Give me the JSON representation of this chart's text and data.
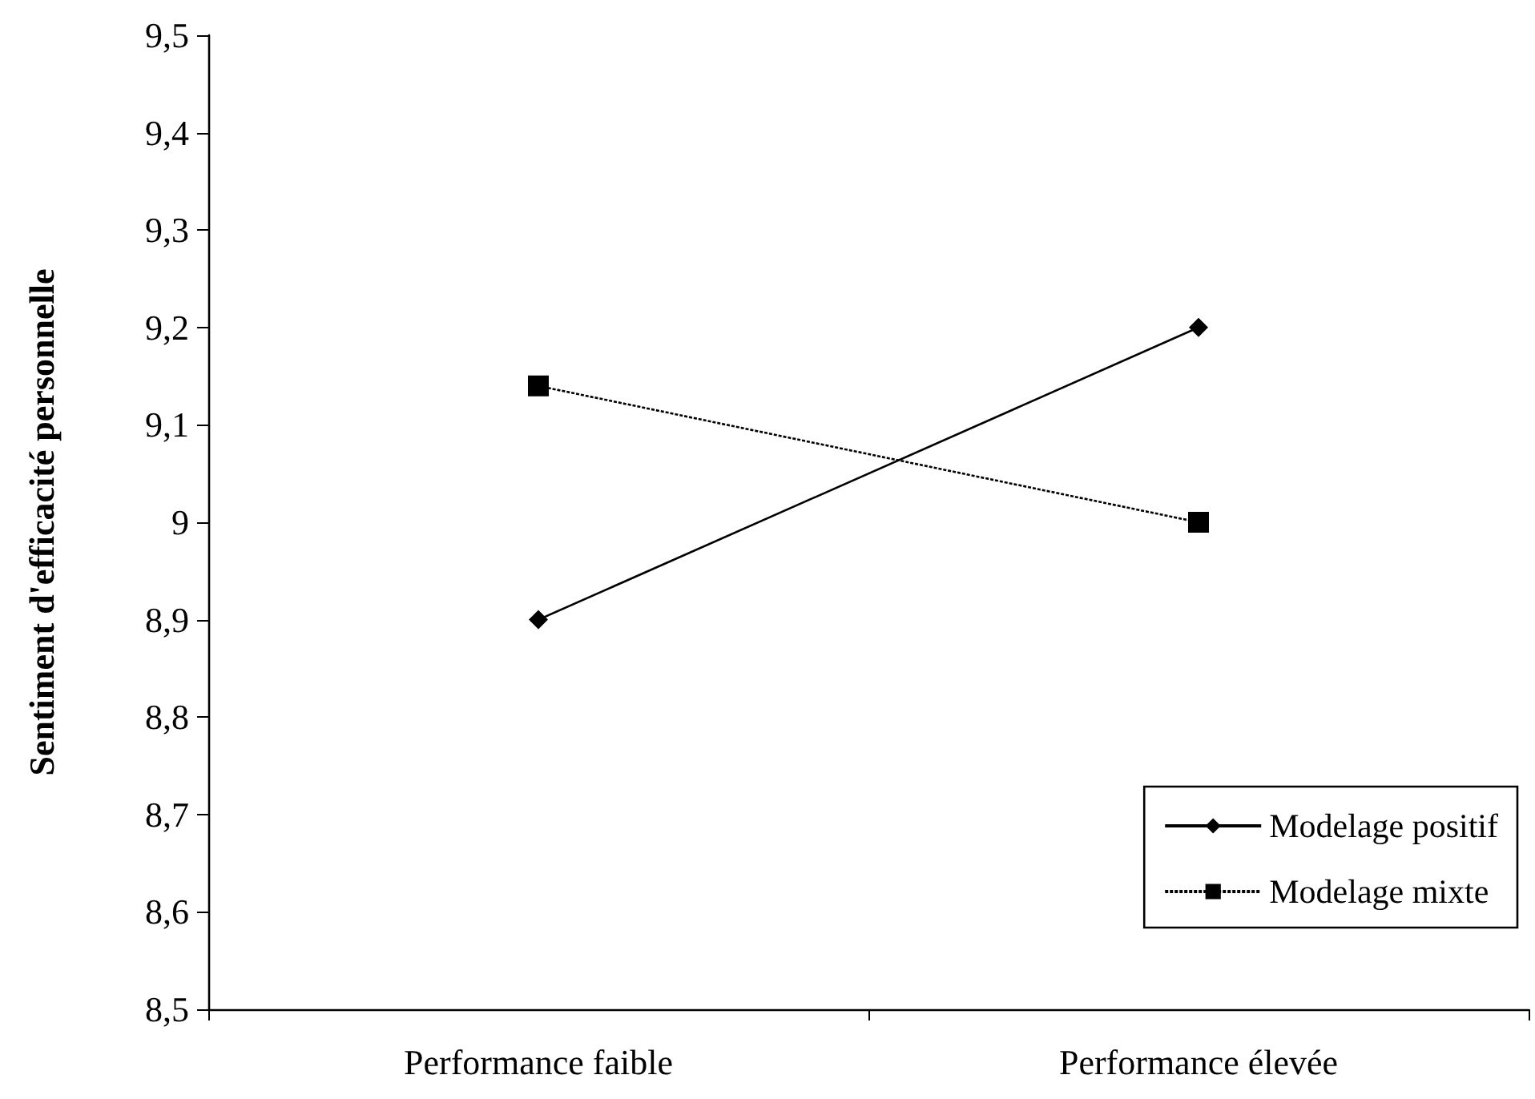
{
  "chart_data": {
    "type": "line",
    "ylabel": "Sentiment d'efficacité personnelle",
    "categories": [
      "Performance faible",
      "Performance élevée"
    ],
    "series": [
      {
        "name": "Modelage positif",
        "color": "#000000",
        "values": [
          8.9,
          9.2
        ],
        "marker": "diamond",
        "line_style": "solid"
      },
      {
        "name": "Modelage mixte",
        "color": "#000000",
        "values": [
          9.14,
          9.0
        ],
        "marker": "square",
        "line_style": "dashed"
      }
    ],
    "ylim": [
      8.5,
      9.5
    ],
    "yticks": [
      {
        "value": 8.5,
        "label": "8,5"
      },
      {
        "value": 8.6,
        "label": "8,6"
      },
      {
        "value": 8.7,
        "label": "8,7"
      },
      {
        "value": 8.8,
        "label": "8,8"
      },
      {
        "value": 8.9,
        "label": "8,9"
      },
      {
        "value": 9,
        "label": "9"
      },
      {
        "value": 9.1,
        "label": "9,1"
      },
      {
        "value": 9.2,
        "label": "9,2"
      },
      {
        "value": 9.3,
        "label": "9,3"
      },
      {
        "value": 9.4,
        "label": "9,4"
      },
      {
        "value": 9.5,
        "label": "9,5"
      }
    ],
    "grid": false,
    "legend": "bottom right"
  }
}
